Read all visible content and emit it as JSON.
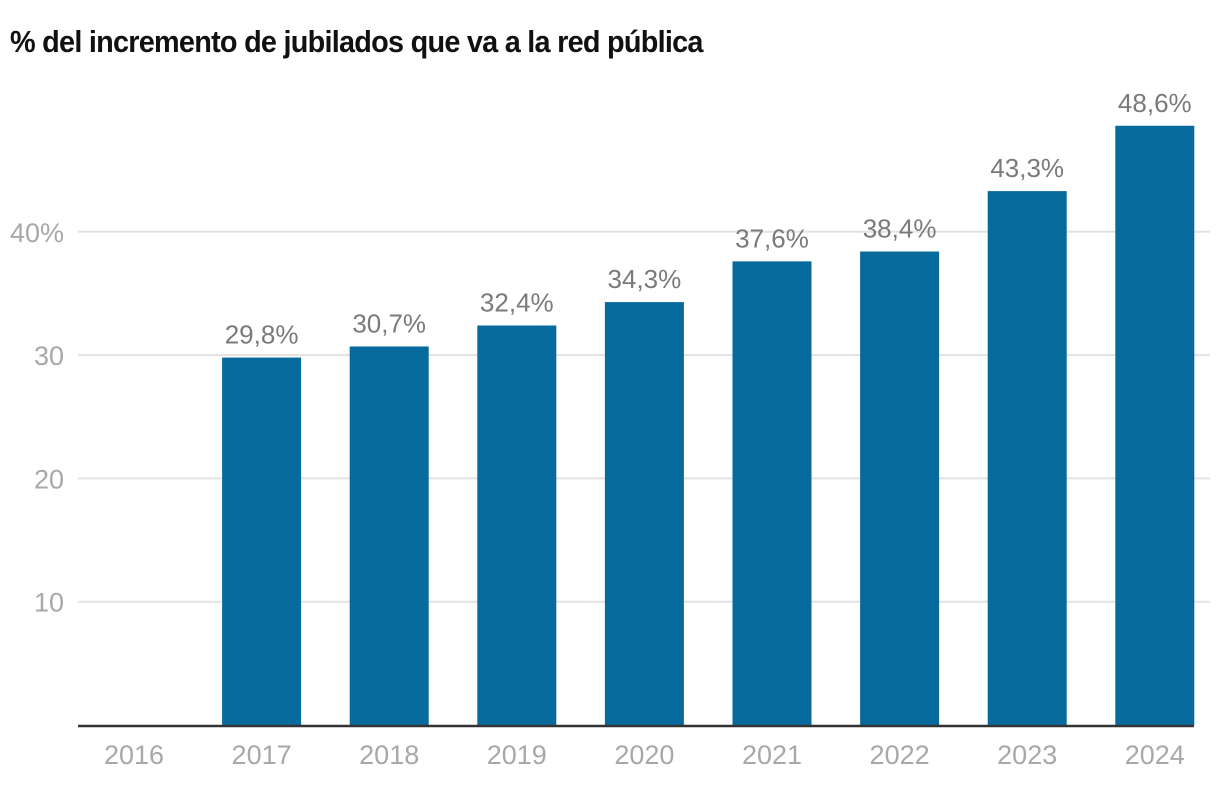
{
  "chart_data": {
    "type": "bar",
    "title": "% del incremento de jubilados que va a la red pública",
    "xlabel": "",
    "ylabel": "",
    "categories": [
      "2016",
      "2017",
      "2018",
      "2019",
      "2020",
      "2021",
      "2022",
      "2023",
      "2024"
    ],
    "values": [
      null,
      29.8,
      30.7,
      32.4,
      34.3,
      37.6,
      38.4,
      43.3,
      48.6
    ],
    "data_labels": [
      "",
      "29,8%",
      "30,7%",
      "32,4%",
      "34,3%",
      "37,6%",
      "38,4%",
      "43,3%",
      "48,6%"
    ],
    "yticks": [
      10,
      20,
      30,
      40
    ],
    "ytick_labels": [
      "10",
      "20",
      "30",
      "40%"
    ],
    "ylim": [
      0,
      50
    ],
    "grid": true,
    "legend": "none",
    "colors": {
      "bar": "#066a9c",
      "grid": "#e3e3e3",
      "baseline": "#333333",
      "tick_text": "#a8a8a8",
      "label_text": "#7a7a7a"
    }
  }
}
